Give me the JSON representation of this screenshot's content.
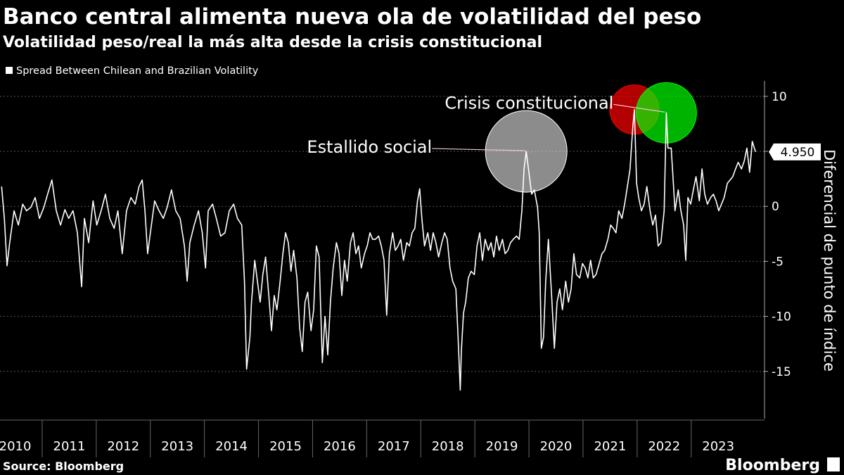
{
  "chart_data": {
    "type": "line",
    "title": "Banco central alimenta nueva ola de volatilidad del peso",
    "subtitle": "Volatilidad peso/real la más alta desde la crisis constitucional",
    "source": "Source: Bloomberg",
    "brand": "Bloomberg",
    "y_axis_label": "Diferencial de punto de índice",
    "latest_label": "4.950",
    "xlim": [
      2010.22,
      2024.33
    ],
    "ylim": [
      -19.3,
      11.4
    ],
    "xticks": [
      2010,
      2011,
      2012,
      2013,
      2014,
      2015,
      2016,
      2017,
      2018,
      2019,
      2020,
      2021,
      2022,
      2023
    ],
    "yticks": [
      -15,
      -10,
      -5,
      0,
      5,
      10
    ],
    "grid": true,
    "x": [
      2010.25,
      2010.3,
      2010.35,
      2010.4,
      2010.48,
      2010.56,
      2010.64,
      2010.71,
      2010.79,
      2010.87,
      2010.95,
      2011.03,
      2011.1,
      2011.18,
      2011.26,
      2011.34,
      2011.42,
      2011.49,
      2011.57,
      2011.65,
      2011.73,
      2011.78,
      2011.86,
      2011.94,
      2012.01,
      2012.09,
      2012.17,
      2012.25,
      2012.33,
      2012.4,
      2012.48,
      2012.56,
      2012.64,
      2012.72,
      2012.79,
      2012.85,
      2012.9,
      2012.95,
      2013.0,
      2013.08,
      2013.16,
      2013.24,
      2013.31,
      2013.39,
      2013.47,
      2013.55,
      2013.63,
      2013.68,
      2013.73,
      2013.81,
      2013.89,
      2013.96,
      2014.02,
      2014.07,
      2014.15,
      2014.22,
      2014.3,
      2014.38,
      2014.46,
      2014.54,
      2014.61,
      2014.69,
      2014.74,
      2014.78,
      2014.84,
      2014.87,
      2014.93,
      2014.98,
      2015.03,
      2015.08,
      2015.13,
      2015.19,
      2015.24,
      2015.29,
      2015.34,
      2015.4,
      2015.45,
      2015.5,
      2015.55,
      2015.6,
      2015.65,
      2015.71,
      2015.76,
      2015.81,
      2015.86,
      2015.91,
      2015.97,
      2016.02,
      2016.07,
      2016.12,
      2016.18,
      2016.23,
      2016.28,
      2016.33,
      2016.38,
      2016.44,
      2016.49,
      2016.54,
      2016.59,
      2016.64,
      2016.7,
      2016.75,
      2016.8,
      2016.85,
      2016.9,
      2016.96,
      2017.01,
      2017.06,
      2017.11,
      2017.16,
      2017.22,
      2017.27,
      2017.32,
      2017.37,
      2017.42,
      2017.48,
      2017.53,
      2017.58,
      2017.63,
      2017.68,
      2017.74,
      2017.79,
      2017.84,
      2017.89,
      2017.94,
      2017.98,
      2018.02,
      2018.07,
      2018.13,
      2018.18,
      2018.23,
      2018.28,
      2018.33,
      2018.39,
      2018.44,
      2018.49,
      2018.54,
      2018.59,
      2018.65,
      2018.69,
      2018.73,
      2018.75,
      2018.79,
      2018.83,
      2018.88,
      2018.93,
      2018.99,
      2019.04,
      2019.09,
      2019.14,
      2019.19,
      2019.25,
      2019.3,
      2019.35,
      2019.4,
      2019.45,
      2019.51,
      2019.56,
      2019.61,
      2019.66,
      2019.71,
      2019.77,
      2019.82,
      2019.87,
      2019.91,
      2019.95,
      2020.0,
      2020.05,
      2020.1,
      2020.16,
      2020.19,
      2020.23,
      2020.27,
      2020.31,
      2020.36,
      2020.42,
      2020.47,
      2020.52,
      2020.57,
      2020.62,
      2020.68,
      2020.73,
      2020.78,
      2020.83,
      2020.88,
      2020.94,
      2020.99,
      2021.04,
      2021.09,
      2021.14,
      2021.19,
      2021.24,
      2021.3,
      2021.35,
      2021.4,
      2021.46,
      2021.51,
      2021.56,
      2021.61,
      2021.66,
      2021.72,
      2021.77,
      2021.82,
      2021.87,
      2021.92,
      2021.95,
      2021.99,
      2022.03,
      2022.08,
      2022.13,
      2022.18,
      2022.24,
      2022.29,
      2022.34,
      2022.39,
      2022.44,
      2022.5,
      2022.54,
      2022.57,
      2022.63,
      2022.67,
      2022.7,
      2022.76,
      2022.81,
      2022.86,
      2022.9,
      2022.94,
      2022.99,
      2023.04,
      2023.09,
      2023.15,
      2023.2,
      2023.25,
      2023.3,
      2023.36,
      2023.41,
      2023.46,
      2023.51,
      2023.56,
      2023.61,
      2023.67,
      2023.72,
      2023.77,
      2023.82,
      2023.87,
      2023.93,
      2023.98,
      2024.03,
      2024.08,
      2024.13,
      2024.19
    ],
    "series": [
      {
        "name": "Spread Between Chilean and Brazilian Volatility",
        "color": "#ffffff",
        "values": [
          1.8,
          -1.1,
          -5.4,
          -3.3,
          -0.4,
          -1.7,
          0.2,
          -0.4,
          -0.1,
          0.8,
          -1.1,
          -0.1,
          1.1,
          2.4,
          -0.4,
          -1.7,
          -0.3,
          -1.1,
          -0.4,
          -2.4,
          -7.3,
          -1.1,
          -3.3,
          0.5,
          -1.7,
          -0.4,
          1.1,
          -1.1,
          -2.0,
          -0.4,
          -4.3,
          -0.4,
          0.8,
          0.2,
          1.8,
          2.4,
          -0.4,
          -4.3,
          -2.4,
          0.5,
          -0.4,
          -1.1,
          -0.1,
          1.5,
          -0.4,
          -1.1,
          -3.6,
          -6.8,
          -3.3,
          -1.7,
          -0.4,
          -2.4,
          -5.6,
          -0.4,
          0.2,
          -1.1,
          -2.7,
          -2.4,
          -0.4,
          0.2,
          -1.1,
          -1.7,
          -6.8,
          -14.8,
          -11.9,
          -8.7,
          -4.9,
          -6.8,
          -8.7,
          -6.2,
          -4.6,
          -8.1,
          -11.3,
          -8.1,
          -9.4,
          -6.8,
          -4.3,
          -2.4,
          -3.3,
          -5.9,
          -4.0,
          -6.5,
          -11.0,
          -13.2,
          -8.7,
          -7.8,
          -11.3,
          -9.4,
          -3.6,
          -4.6,
          -14.2,
          -10.0,
          -13.5,
          -8.7,
          -5.6,
          -3.3,
          -4.3,
          -8.1,
          -4.9,
          -6.8,
          -3.3,
          -2.4,
          -4.3,
          -3.6,
          -5.6,
          -4.3,
          -3.6,
          -2.4,
          -3.0,
          -3.0,
          -2.7,
          -3.6,
          -4.9,
          -9.9,
          -4.3,
          -2.4,
          -4.0,
          -3.6,
          -3.0,
          -4.9,
          -3.3,
          -3.6,
          -2.4,
          -2.0,
          0.5,
          1.6,
          -1.1,
          -3.6,
          -2.4,
          -4.0,
          -2.4,
          -3.3,
          -4.6,
          -3.3,
          -2.4,
          -3.0,
          -5.6,
          -6.8,
          -7.5,
          -11.9,
          -16.7,
          -13.2,
          -9.7,
          -8.7,
          -6.5,
          -5.9,
          -6.2,
          -3.6,
          -2.4,
          -4.9,
          -3.0,
          -4.0,
          -3.3,
          -4.6,
          -2.7,
          -4.0,
          -3.0,
          -4.3,
          -4.0,
          -3.3,
          -3.0,
          -2.7,
          -3.0,
          -0.4,
          3.4,
          5.0,
          3.1,
          1.1,
          1.5,
          -0.1,
          -2.4,
          -12.9,
          -11.9,
          -6.8,
          -3.0,
          -8.1,
          -12.9,
          -8.7,
          -7.5,
          -9.4,
          -6.8,
          -8.7,
          -7.5,
          -4.3,
          -6.2,
          -6.5,
          -5.2,
          -5.6,
          -6.5,
          -4.9,
          -6.5,
          -6.2,
          -5.2,
          -4.3,
          -4.0,
          -3.0,
          -1.7,
          -2.0,
          -2.4,
          -0.4,
          -1.1,
          0.2,
          1.8,
          3.4,
          7.2,
          8.8,
          2.1,
          0.8,
          -0.4,
          0.2,
          1.8,
          -0.4,
          -1.7,
          -0.8,
          -3.6,
          -3.3,
          -0.4,
          8.5,
          5.3,
          5.3,
          2.1,
          -0.4,
          1.5,
          -0.4,
          -1.7,
          -4.9,
          0.8,
          0.2,
          1.5,
          2.7,
          0.5,
          3.4,
          1.1,
          0.2,
          0.8,
          1.1,
          0.5,
          -0.4,
          0.2,
          0.8,
          2.1,
          2.4,
          2.7,
          3.4,
          4.0,
          3.4,
          4.1,
          5.3,
          3.1,
          5.9,
          4.95
        ]
      }
    ],
    "highlights": [
      {
        "x": 2019.95,
        "y": 5.0,
        "color": "#ffffff"
      },
      {
        "x": 2021.95,
        "y": 8.8,
        "color": "#ff0000"
      },
      {
        "x": 2022.54,
        "y": 8.5,
        "color": "#00ff00"
      }
    ],
    "annotations": [
      {
        "text": "Estallido social",
        "x": 2019.95,
        "y": 5.0
      },
      {
        "text": "Crisis constitucional",
        "x": 2022.54,
        "y": 8.5
      }
    ]
  }
}
